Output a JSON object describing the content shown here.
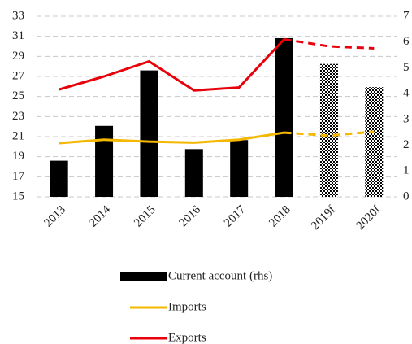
{
  "chart_data": {
    "type": "bar-line",
    "categories": [
      "2013",
      "2014",
      "2015",
      "2016",
      "2017",
      "2018",
      "2019f",
      "2020f"
    ],
    "series": [
      {
        "name": "Current account (rhs)",
        "type": "bar",
        "axis": "y2",
        "color": "#000000",
        "values": [
          1.4,
          2.75,
          4.9,
          1.85,
          2.2,
          6.15,
          5.15,
          4.25
        ]
      },
      {
        "name": "Imports",
        "type": "line",
        "color": "#f5b800",
        "values": [
          20.35,
          20.7,
          20.5,
          20.4,
          20.7,
          21.4,
          21.1,
          21.5
        ]
      },
      {
        "name": "Exports",
        "type": "line",
        "color": "#e8000b",
        "values": [
          25.7,
          27.0,
          28.5,
          25.6,
          25.9,
          30.7,
          30.0,
          29.8
        ]
      }
    ],
    "ylim": [
      15,
      33
    ],
    "yticks": [
      15,
      17,
      19,
      21,
      23,
      25,
      27,
      29,
      31,
      33
    ],
    "y2lim": [
      0,
      7
    ],
    "y2ticks": [
      0,
      1,
      2,
      3,
      4,
      5,
      6,
      7
    ],
    "grid": true
  }
}
